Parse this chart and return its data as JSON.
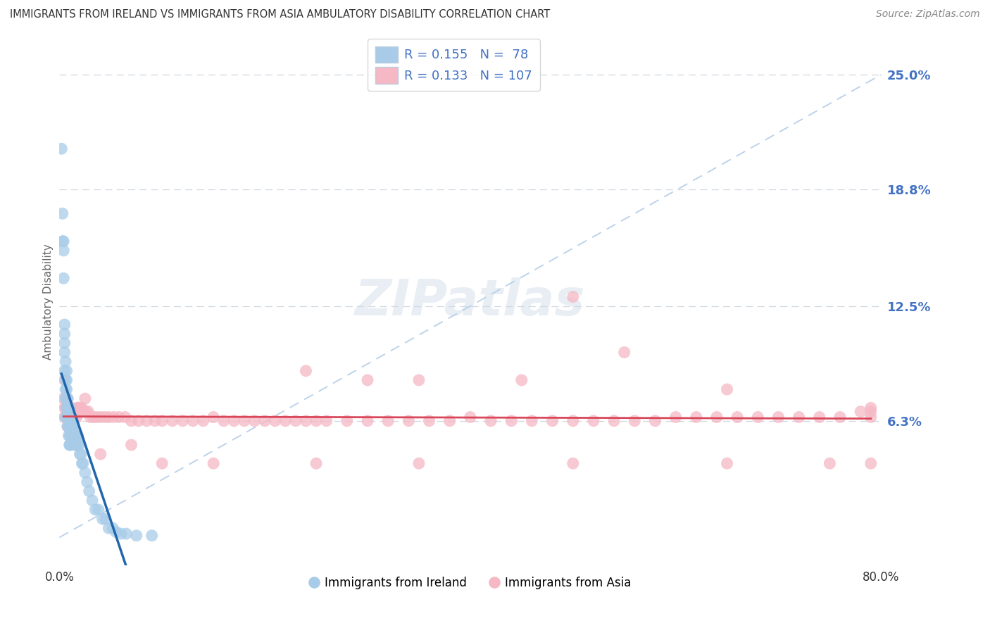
{
  "title": "IMMIGRANTS FROM IRELAND VS IMMIGRANTS FROM ASIA AMBULATORY DISABILITY CORRELATION CHART",
  "source": "Source: ZipAtlas.com",
  "ylabel": "Ambulatory Disability",
  "xlim": [
    0.0,
    0.8
  ],
  "ylim": [
    -0.015,
    0.27
  ],
  "ireland_R": 0.155,
  "ireland_N": 78,
  "asia_R": 0.133,
  "asia_N": 107,
  "ireland_color": "#a8cce8",
  "asia_color": "#f5b8c4",
  "ireland_line_color": "#2166ac",
  "asia_line_color": "#d9485a",
  "diag_line_color": "#b8d0e8",
  "background_color": "#ffffff",
  "ytick_vals": [
    0.0,
    0.063,
    0.125,
    0.188,
    0.25
  ],
  "ytick_labels": [
    "",
    "6.3%",
    "12.5%",
    "18.8%",
    "25.0%"
  ],
  "xtick_vals": [
    0.0,
    0.8
  ],
  "xtick_labels": [
    "0.0%",
    "80.0%"
  ],
  "ireland_x": [
    0.002,
    0.003,
    0.003,
    0.004,
    0.004,
    0.004,
    0.005,
    0.005,
    0.005,
    0.005,
    0.005,
    0.006,
    0.006,
    0.006,
    0.006,
    0.006,
    0.007,
    0.007,
    0.007,
    0.007,
    0.007,
    0.007,
    0.008,
    0.008,
    0.008,
    0.008,
    0.008,
    0.009,
    0.009,
    0.009,
    0.009,
    0.009,
    0.01,
    0.01,
    0.01,
    0.01,
    0.01,
    0.01,
    0.01,
    0.011,
    0.011,
    0.011,
    0.011,
    0.012,
    0.012,
    0.012,
    0.013,
    0.013,
    0.014,
    0.014,
    0.015,
    0.015,
    0.016,
    0.016,
    0.017,
    0.017,
    0.018,
    0.018,
    0.019,
    0.02,
    0.021,
    0.022,
    0.023,
    0.025,
    0.027,
    0.029,
    0.032,
    0.035,
    0.038,
    0.042,
    0.045,
    0.048,
    0.052,
    0.055,
    0.06,
    0.065,
    0.075,
    0.09
  ],
  "ireland_y": [
    0.21,
    0.175,
    0.16,
    0.16,
    0.155,
    0.14,
    0.115,
    0.11,
    0.105,
    0.1,
    0.09,
    0.095,
    0.085,
    0.08,
    0.075,
    0.065,
    0.09,
    0.085,
    0.08,
    0.075,
    0.07,
    0.065,
    0.075,
    0.07,
    0.065,
    0.065,
    0.06,
    0.07,
    0.065,
    0.06,
    0.06,
    0.055,
    0.07,
    0.065,
    0.065,
    0.06,
    0.055,
    0.05,
    0.05,
    0.065,
    0.06,
    0.055,
    0.05,
    0.065,
    0.06,
    0.055,
    0.06,
    0.055,
    0.06,
    0.055,
    0.055,
    0.05,
    0.055,
    0.05,
    0.055,
    0.05,
    0.055,
    0.05,
    0.05,
    0.045,
    0.045,
    0.04,
    0.04,
    0.035,
    0.03,
    0.025,
    0.02,
    0.015,
    0.015,
    0.01,
    0.01,
    0.005,
    0.005,
    0.003,
    0.002,
    0.002,
    0.001,
    0.001
  ],
  "asia_x": [
    0.004,
    0.005,
    0.005,
    0.006,
    0.006,
    0.007,
    0.007,
    0.008,
    0.008,
    0.009,
    0.009,
    0.01,
    0.01,
    0.011,
    0.012,
    0.013,
    0.014,
    0.015,
    0.016,
    0.017,
    0.018,
    0.02,
    0.022,
    0.024,
    0.026,
    0.028,
    0.03,
    0.033,
    0.036,
    0.04,
    0.044,
    0.048,
    0.053,
    0.058,
    0.064,
    0.07,
    0.077,
    0.085,
    0.093,
    0.1,
    0.11,
    0.12,
    0.13,
    0.14,
    0.15,
    0.16,
    0.17,
    0.18,
    0.19,
    0.2,
    0.21,
    0.22,
    0.23,
    0.24,
    0.25,
    0.26,
    0.28,
    0.3,
    0.32,
    0.34,
    0.36,
    0.38,
    0.4,
    0.42,
    0.44,
    0.46,
    0.48,
    0.5,
    0.52,
    0.54,
    0.56,
    0.58,
    0.6,
    0.62,
    0.64,
    0.66,
    0.68,
    0.7,
    0.72,
    0.74,
    0.76,
    0.78,
    0.79,
    0.79,
    0.79,
    0.24,
    0.35,
    0.45,
    0.55,
    0.65,
    0.005,
    0.008,
    0.012,
    0.018,
    0.025,
    0.04,
    0.07,
    0.1,
    0.15,
    0.25,
    0.35,
    0.5,
    0.65,
    0.75,
    0.79,
    0.3,
    0.5
  ],
  "asia_y": [
    0.075,
    0.07,
    0.065,
    0.07,
    0.065,
    0.07,
    0.065,
    0.065,
    0.06,
    0.07,
    0.065,
    0.065,
    0.06,
    0.065,
    0.065,
    0.065,
    0.065,
    0.065,
    0.065,
    0.065,
    0.07,
    0.07,
    0.07,
    0.068,
    0.068,
    0.068,
    0.065,
    0.065,
    0.065,
    0.065,
    0.065,
    0.065,
    0.065,
    0.065,
    0.065,
    0.063,
    0.063,
    0.063,
    0.063,
    0.063,
    0.063,
    0.063,
    0.063,
    0.063,
    0.065,
    0.063,
    0.063,
    0.063,
    0.063,
    0.063,
    0.063,
    0.063,
    0.063,
    0.063,
    0.063,
    0.063,
    0.063,
    0.063,
    0.063,
    0.063,
    0.063,
    0.063,
    0.065,
    0.063,
    0.063,
    0.063,
    0.063,
    0.063,
    0.063,
    0.063,
    0.063,
    0.063,
    0.065,
    0.065,
    0.065,
    0.065,
    0.065,
    0.065,
    0.065,
    0.065,
    0.065,
    0.068,
    0.065,
    0.068,
    0.07,
    0.09,
    0.085,
    0.085,
    0.1,
    0.08,
    0.085,
    0.075,
    0.07,
    0.07,
    0.075,
    0.045,
    0.05,
    0.04,
    0.04,
    0.04,
    0.04,
    0.04,
    0.04,
    0.04,
    0.04,
    0.085,
    0.13
  ]
}
